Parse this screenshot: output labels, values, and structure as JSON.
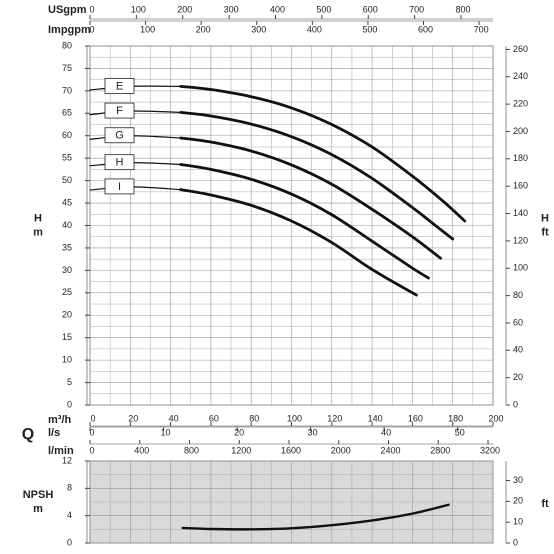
{
  "chart_data": [
    {
      "type": "line",
      "top_axes": [
        {
          "label": "USgpm",
          "xlim": [
            0,
            869
          ],
          "xticks": [
            0,
            100,
            200,
            300,
            400,
            500,
            600,
            700,
            800
          ]
        },
        {
          "label": "Impgpm",
          "xlim": [
            0,
            725
          ],
          "xticks": [
            0,
            100,
            200,
            300,
            400,
            500,
            600,
            700
          ]
        }
      ],
      "x_label": "m³/h",
      "xlim": [
        0,
        200
      ],
      "xticks": [
        0,
        20,
        40,
        60,
        80,
        100,
        120,
        140,
        160,
        180,
        200
      ],
      "bottom_axes": [
        {
          "label": "l/s",
          "xlim": [
            0,
            54.8
          ],
          "xticks": [
            0,
            10,
            20,
            30,
            40,
            50
          ]
        },
        {
          "label": "l/min",
          "xlim": [
            0,
            3240
          ],
          "xticks": [
            0,
            400,
            800,
            1200,
            1600,
            2000,
            2400,
            2800,
            3200
          ]
        }
      ],
      "q_label": "Q",
      "y_label": [
        "H",
        "m"
      ],
      "ylim": [
        0,
        80
      ],
      "yticks": [
        0,
        5,
        10,
        15,
        20,
        25,
        30,
        35,
        40,
        45,
        50,
        55,
        60,
        65,
        70,
        75,
        80
      ],
      "y2_label": [
        "H",
        "ft"
      ],
      "y2lim": [
        0,
        262.5
      ],
      "y2ticks": [
        0,
        20,
        40,
        60,
        80,
        100,
        120,
        140,
        160,
        180,
        200,
        220,
        240,
        260
      ],
      "grid": true,
      "series": [
        {
          "name": "E",
          "color": "#111111",
          "x": [
            0,
            20,
            45,
            60,
            80,
            100,
            120,
            140,
            160,
            175,
            186
          ],
          "values": [
            70.2,
            71,
            71,
            70.3,
            68.7,
            66.2,
            62.5,
            57.5,
            51,
            45.5,
            41
          ]
        },
        {
          "name": "F",
          "color": "#111111",
          "x": [
            0,
            20,
            45,
            60,
            80,
            100,
            120,
            140,
            160,
            170,
            180
          ],
          "values": [
            64.7,
            65.5,
            65.2,
            64.4,
            62.6,
            59.8,
            55.8,
            50.5,
            44,
            40.5,
            37
          ]
        },
        {
          "name": "G",
          "color": "#111111",
          "x": [
            0,
            20,
            45,
            60,
            80,
            100,
            120,
            140,
            160,
            174
          ],
          "values": [
            59.2,
            60,
            59.5,
            58.6,
            56.6,
            53.5,
            49.2,
            43.6,
            37.5,
            32.7
          ]
        },
        {
          "name": "H",
          "color": "#111111",
          "x": [
            0,
            20,
            45,
            60,
            80,
            100,
            120,
            140,
            160,
            168
          ],
          "values": [
            53.3,
            54,
            53.6,
            52.5,
            50.3,
            47,
            42.4,
            36.5,
            30.5,
            28.3
          ]
        },
        {
          "name": "I",
          "color": "#111111",
          "x": [
            0,
            20,
            45,
            60,
            80,
            100,
            120,
            140,
            162
          ],
          "values": [
            47.9,
            48.6,
            48,
            46.8,
            44.5,
            41,
            36.2,
            30.2,
            24.5
          ]
        }
      ]
    },
    {
      "type": "line",
      "y_label": [
        "NPSH",
        "m"
      ],
      "xlim": [
        0,
        200
      ],
      "xticks": [
        0,
        20,
        40,
        60,
        80,
        100,
        120,
        140,
        160,
        180,
        200
      ],
      "ylim": [
        0,
        12
      ],
      "yticks": [
        0,
        4,
        8,
        12
      ],
      "y2_label": "ft",
      "y2lim": [
        0,
        39.37
      ],
      "y2ticks": [
        0,
        10,
        20,
        30
      ],
      "grid": true,
      "background": "#d9d9d9",
      "series": [
        {
          "color": "#111111",
          "x": [
            46,
            60,
            80,
            100,
            120,
            140,
            160,
            178
          ],
          "values": [
            2.2,
            2.05,
            2.0,
            2.15,
            2.6,
            3.3,
            4.3,
            5.6
          ]
        }
      ]
    }
  ]
}
